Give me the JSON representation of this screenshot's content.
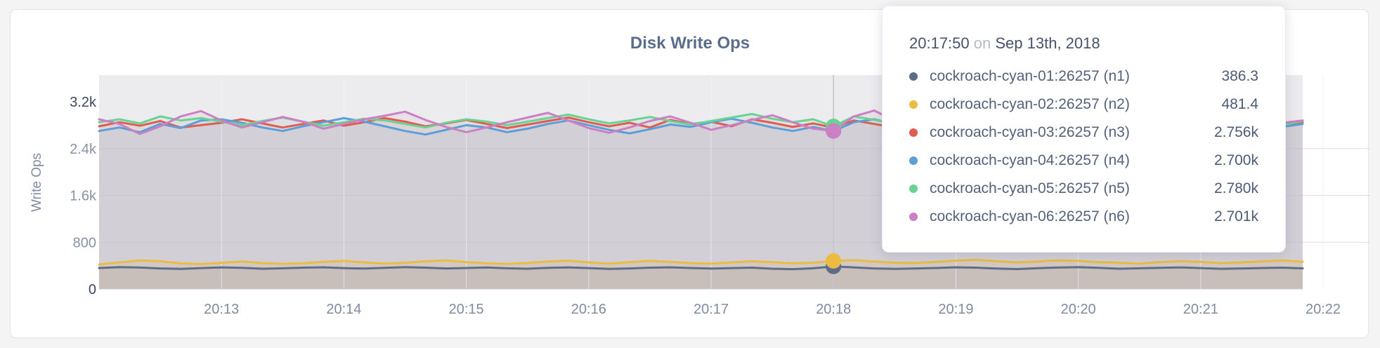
{
  "panel": {
    "title": "Disk Write Ops"
  },
  "tooltip": {
    "time": "20:17:50",
    "conj": "on",
    "date": "Sep 13th, 2018",
    "rows": [
      {
        "label": "cockroach-cyan-01:26257 (n1)",
        "value": "386.3",
        "color": "#5f6c87"
      },
      {
        "label": "cockroach-cyan-02:26257 (n2)",
        "value": "481.4",
        "color": "#ecbb41"
      },
      {
        "label": "cockroach-cyan-03:26257 (n3)",
        "value": "2.756k",
        "color": "#e05b52"
      },
      {
        "label": "cockroach-cyan-04:26257 (n4)",
        "value": "2.700k",
        "color": "#5b9fd9"
      },
      {
        "label": "cockroach-cyan-05:26257 (n5)",
        "value": "2.780k",
        "color": "#68d392"
      },
      {
        "label": "cockroach-cyan-06:26257 (n6)",
        "value": "2.701k",
        "color": "#cc80c4"
      }
    ]
  },
  "chart_data": {
    "type": "line",
    "title": "Disk Write Ops",
    "ylabel": "Write Ops",
    "xlabel": "",
    "grid": "on",
    "legend_position": "tooltip",
    "ylim": [
      0,
      3655
    ],
    "yticks": [
      {
        "value": 0,
        "label": "0",
        "emph": true
      },
      {
        "value": 800,
        "label": "800",
        "emph": false
      },
      {
        "value": 1600,
        "label": "1.6k",
        "emph": false
      },
      {
        "value": 2400,
        "label": "2.4k",
        "emph": false
      },
      {
        "value": 3200,
        "label": "3.2k",
        "emph": true
      }
    ],
    "xticks": [
      "20:13",
      "20:14",
      "20:15",
      "20:16",
      "20:17",
      "20:18",
      "20:19",
      "20:20",
      "20:21",
      "20:22"
    ],
    "x_start_time": "20:12:00",
    "x_step_seconds": 10,
    "first_tick_index": 6,
    "points_per_tick": 6,
    "hover_index": 36,
    "hover_time": "20:17:50",
    "dot_draw_order": [
      "n4",
      "n3",
      "n5",
      "n6",
      "n1",
      "n2"
    ],
    "series": [
      {
        "id": "n1",
        "name": "cockroach-cyan-01:26257 (n1)",
        "color": "#5f6c87",
        "fill_opacity": 0.12,
        "values": [
          360,
          375,
          368,
          352,
          345,
          358,
          370,
          362,
          348,
          355,
          365,
          372,
          358,
          350,
          362,
          374,
          366,
          352,
          360,
          368,
          355,
          348,
          362,
          370,
          358,
          345,
          352,
          366,
          372,
          360,
          350,
          358,
          365,
          348,
          340,
          355,
          386.3,
          370,
          352,
          345,
          352,
          360,
          372,
          365,
          350,
          342,
          356,
          368,
          374,
          362,
          348,
          355,
          363,
          370,
          358,
          346,
          352,
          360,
          366,
          354
        ]
      },
      {
        "id": "n2",
        "name": "cockroach-cyan-02:26257 (n2)",
        "color": "#ecbb41",
        "fill_opacity": 0.16,
        "values": [
          420,
          455,
          490,
          475,
          440,
          425,
          450,
          470,
          445,
          430,
          440,
          465,
          480,
          455,
          435,
          450,
          475,
          490,
          460,
          440,
          430,
          445,
          470,
          485,
          455,
          435,
          460,
          480,
          465,
          445,
          435,
          455,
          475,
          460,
          440,
          450,
          481.4,
          495,
          470,
          450,
          445,
          465,
          485,
          500,
          475,
          455,
          470,
          490,
          480,
          460,
          450,
          435,
          460,
          478,
          465,
          442,
          455,
          472,
          488,
          468
        ]
      },
      {
        "id": "n3",
        "name": "cockroach-cyan-03:26257 (n3)",
        "color": "#e05b52",
        "fill_opacity": 0.085,
        "values": [
          2780,
          2850,
          2790,
          2870,
          2760,
          2800,
          2840,
          2900,
          2830,
          2760,
          2820,
          2880,
          2790,
          2850,
          2920,
          2860,
          2780,
          2830,
          2890,
          2820,
          2750,
          2810,
          2870,
          2930,
          2850,
          2780,
          2840,
          2760,
          2890,
          2820,
          2860,
          2780,
          2900,
          2840,
          2770,
          2830,
          2756,
          2880,
          2820,
          2760,
          2850,
          2900,
          2830,
          2770,
          2890,
          2840,
          2780,
          2860,
          2920,
          2850,
          2790,
          2830,
          2870,
          2800,
          2750,
          2820,
          2880,
          2840,
          2780,
          2850
        ]
      },
      {
        "id": "n4",
        "name": "cockroach-cyan-04:26257 (n4)",
        "color": "#5b9fd9",
        "fill_opacity": 0.085,
        "values": [
          2700,
          2760,
          2680,
          2820,
          2750,
          2880,
          2900,
          2840,
          2760,
          2700,
          2780,
          2850,
          2920,
          2860,
          2780,
          2700,
          2640,
          2720,
          2800,
          2760,
          2680,
          2740,
          2820,
          2880,
          2800,
          2720,
          2660,
          2730,
          2810,
          2770,
          2850,
          2910,
          2840,
          2760,
          2700,
          2770,
          2700,
          2850,
          2900,
          2820,
          2740,
          2680,
          2750,
          2830,
          2790,
          2710,
          2760,
          2840,
          2880,
          2800,
          2720,
          2780,
          2850,
          2800,
          2730,
          2690,
          2760,
          2820,
          2770,
          2820
        ]
      },
      {
        "id": "n5",
        "name": "cockroach-cyan-05:26257 (n5)",
        "color": "#68d392",
        "fill_opacity": 0.085,
        "values": [
          2850,
          2900,
          2830,
          2950,
          2880,
          2920,
          2860,
          2800,
          2870,
          2930,
          2860,
          2790,
          2850,
          2910,
          2880,
          2820,
          2760,
          2840,
          2900,
          2860,
          2800,
          2860,
          2920,
          2980,
          2900,
          2830,
          2880,
          2940,
          2870,
          2810,
          2870,
          2930,
          2990,
          2910,
          2850,
          2900,
          2780,
          2950,
          2890,
          2830,
          2890,
          2940,
          2870,
          2810,
          2880,
          2930,
          2860,
          2900,
          2950,
          2880,
          2820,
          2880,
          2930,
          2870,
          2800,
          2850,
          2910,
          2860,
          2800,
          2870
        ]
      },
      {
        "id": "n6",
        "name": "cockroach-cyan-06:26257 (n6)",
        "color": "#cc80c4",
        "fill_opacity": 0.085,
        "values": [
          2900,
          2820,
          2650,
          2780,
          2950,
          3040,
          2880,
          2760,
          2850,
          2940,
          2860,
          2740,
          2820,
          2900,
          2960,
          3030,
          2890,
          2770,
          2680,
          2760,
          2850,
          2930,
          3010,
          2880,
          2750,
          2670,
          2760,
          2870,
          2950,
          2840,
          2720,
          2800,
          2890,
          2970,
          2850,
          2740,
          2701,
          2950,
          3050,
          2870,
          2760,
          2680,
          2770,
          2860,
          2940,
          2820,
          2700,
          2780,
          2870,
          2930,
          2810,
          2730,
          2800,
          2880,
          2820,
          2750,
          2830,
          2900,
          2840,
          2880
        ]
      }
    ]
  }
}
